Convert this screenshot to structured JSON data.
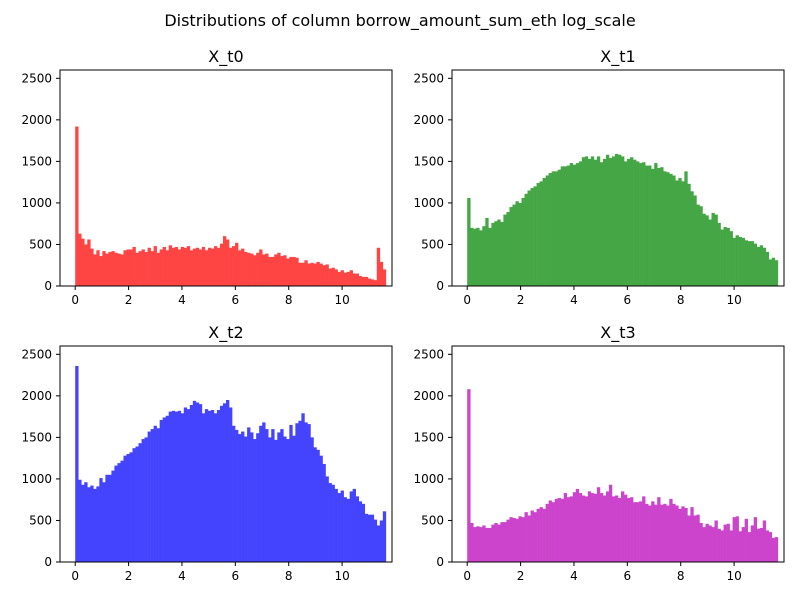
{
  "figure": {
    "suptitle": "Distributions of column borrow_amount_sum_eth log_scale"
  },
  "chart_data": [
    {
      "type": "bar",
      "title": "X_t0",
      "color": "#ff4444",
      "bin_start": 0.0,
      "bin_width": 0.113,
      "xlim": [
        -0.57,
        11.87
      ],
      "ylim": [
        0,
        2600
      ],
      "xticks": [
        0,
        2,
        4,
        6,
        8,
        10
      ],
      "yticks": [
        0,
        500,
        1000,
        1500,
        2000,
        2500
      ],
      "values": [
        1920,
        630,
        570,
        500,
        560,
        450,
        380,
        430,
        360,
        420,
        390,
        410,
        420,
        400,
        390,
        380,
        430,
        440,
        440,
        470,
        400,
        420,
        440,
        410,
        460,
        420,
        480,
        400,
        440,
        470,
        430,
        490,
        460,
        470,
        440,
        470,
        460,
        480,
        430,
        450,
        460,
        440,
        470,
        430,
        460,
        450,
        480,
        460,
        510,
        600,
        560,
        460,
        480,
        520,
        430,
        450,
        410,
        400,
        390,
        370,
        400,
        440,
        380,
        390,
        350,
        350,
        380,
        400,
        360,
        370,
        330,
        350,
        350,
        340,
        280,
        280,
        310,
        270,
        280,
        270,
        290,
        270,
        250,
        260,
        210,
        220,
        200,
        170,
        190,
        160,
        170,
        190,
        150,
        150,
        120,
        110,
        110,
        90,
        80,
        70,
        460,
        290,
        200
      ]
    },
    {
      "type": "bar",
      "title": "X_t1",
      "color": "#44a644",
      "bin_start": 0.0,
      "bin_width": 0.113,
      "xlim": [
        -0.57,
        11.87
      ],
      "ylim": [
        0,
        2600
      ],
      "xticks": [
        0,
        2,
        4,
        6,
        8,
        10
      ],
      "yticks": [
        0,
        500,
        1000,
        1500,
        2000,
        2500
      ],
      "values": [
        1060,
        700,
        690,
        700,
        670,
        720,
        820,
        700,
        760,
        780,
        800,
        770,
        860,
        890,
        950,
        980,
        1020,
        1000,
        1060,
        1110,
        1150,
        1180,
        1200,
        1240,
        1260,
        1300,
        1330,
        1360,
        1380,
        1380,
        1400,
        1440,
        1440,
        1450,
        1480,
        1460,
        1480,
        1500,
        1550,
        1560,
        1530,
        1560,
        1520,
        1560,
        1490,
        1530,
        1580,
        1540,
        1560,
        1590,
        1580,
        1560,
        1500,
        1530,
        1550,
        1520,
        1500,
        1480,
        1490,
        1450,
        1450,
        1410,
        1480,
        1420,
        1430,
        1380,
        1370,
        1350,
        1330,
        1270,
        1300,
        1260,
        1380,
        1230,
        1140,
        1090,
        980,
        960,
        870,
        850,
        800,
        880,
        860,
        760,
        680,
        710,
        700,
        660,
        580,
        610,
        590,
        580,
        550,
        540,
        540,
        510,
        470,
        490,
        460,
        410,
        320,
        340,
        310
      ]
    },
    {
      "type": "bar",
      "title": "X_t2",
      "color": "#4444ff",
      "bin_start": 0.0,
      "bin_width": 0.113,
      "xlim": [
        -0.57,
        11.87
      ],
      "ylim": [
        0,
        2600
      ],
      "xticks": [
        0,
        2,
        4,
        6,
        8,
        10
      ],
      "yticks": [
        0,
        500,
        1000,
        1500,
        2000,
        2500
      ],
      "values": [
        2360,
        990,
        930,
        960,
        900,
        920,
        880,
        910,
        1010,
        960,
        1050,
        1050,
        1100,
        1160,
        1190,
        1220,
        1280,
        1300,
        1320,
        1370,
        1390,
        1430,
        1480,
        1500,
        1570,
        1600,
        1640,
        1610,
        1710,
        1740,
        1760,
        1810,
        1820,
        1810,
        1820,
        1790,
        1860,
        1840,
        1890,
        1940,
        1920,
        1900,
        1790,
        1840,
        1820,
        1830,
        1790,
        1830,
        1880,
        1910,
        1950,
        1860,
        1640,
        1590,
        1540,
        1570,
        1510,
        1620,
        1560,
        1480,
        1550,
        1640,
        1680,
        1600,
        1500,
        1600,
        1470,
        1560,
        1600,
        1510,
        1480,
        1650,
        1520,
        1670,
        1700,
        1790,
        1680,
        1660,
        1500,
        1380,
        1350,
        1280,
        1180,
        1030,
        950,
        930,
        880,
        830,
        860,
        780,
        760,
        850,
        880,
        790,
        730,
        700,
        580,
        570,
        570,
        510,
        440,
        500,
        610
      ]
    },
    {
      "type": "bar",
      "title": "X_t3",
      "color": "#cc44cc",
      "bin_start": 0.0,
      "bin_width": 0.113,
      "xlim": [
        -0.57,
        11.87
      ],
      "ylim": [
        0,
        2600
      ],
      "xticks": [
        0,
        2,
        4,
        6,
        8,
        10
      ],
      "yticks": [
        0,
        500,
        1000,
        1500,
        2000,
        2500
      ],
      "values": [
        2080,
        470,
        420,
        430,
        420,
        440,
        410,
        410,
        450,
        470,
        450,
        480,
        480,
        510,
        540,
        530,
        520,
        550,
        540,
        600,
        560,
        620,
        600,
        640,
        660,
        640,
        700,
        740,
        720,
        760,
        770,
        760,
        830,
        780,
        790,
        840,
        880,
        830,
        800,
        790,
        850,
        830,
        820,
        900,
        830,
        800,
        850,
        930,
        790,
        800,
        770,
        850,
        810,
        770,
        780,
        720,
        720,
        730,
        790,
        700,
        680,
        730,
        690,
        780,
        690,
        700,
        680,
        760,
        700,
        680,
        640,
        670,
        650,
        560,
        660,
        560,
        570,
        470,
        420,
        460,
        440,
        420,
        500,
        400,
        380,
        450,
        460,
        380,
        540,
        550,
        370,
        420,
        520,
        360,
        440,
        540,
        400,
        410,
        500,
        380,
        360,
        290,
        300
      ]
    }
  ]
}
